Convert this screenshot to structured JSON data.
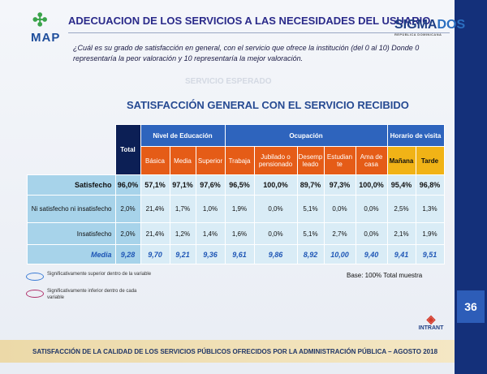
{
  "header": {
    "title": "ADECUACION DE LOS SERVICIOS A LAS NECESIDADES DEL USUARIO",
    "logo_left": "MAP",
    "logo_right_main": "SIGMA",
    "logo_right_accent": "DOS",
    "logo_right_sub": "REPÚBLICA DOMINICANA"
  },
  "question": "¿Cuál es su grado de satisfacción en general, con el servicio que ofrece la institución (del 0 al 10) Donde 0 representaría la peor valoración y 10 representaría la mejor valoración.",
  "ghost_text": "SERVICIO ESPERADO",
  "chart_title": "SATISFACCIÓN GENERAL CON EL SERVICIO RECIBIDO",
  "table": {
    "total_header": "Total",
    "groups": [
      {
        "label": "Nivel de Educación",
        "columns": [
          "Básica",
          "Media",
          "Superior"
        ]
      },
      {
        "label": "Ocupación",
        "columns": [
          "Trabaja",
          "Jubilado o pensionado",
          "Desemp leado",
          "Estudian te",
          "Ama de casa"
        ]
      },
      {
        "label": "Horario de visita",
        "columns": [
          "Mañana",
          "Tarde"
        ]
      }
    ],
    "rows": [
      {
        "label": "Satisfecho",
        "values": [
          "96,0%",
          "57,1%",
          "97,1%",
          "97,6%",
          "96,5%",
          "100,0%",
          "89,7%",
          "97,3%",
          "100,0%",
          "95,4%",
          "96,8%"
        ]
      },
      {
        "label": "Ni satisfecho ni insatisfecho",
        "values": [
          "2,0%",
          "21,4%",
          "1,7%",
          "1,0%",
          "1,9%",
          "0,0%",
          "5,1%",
          "0,0%",
          "0,0%",
          "2,5%",
          "1,3%"
        ]
      },
      {
        "label": "Insatisfecho",
        "values": [
          "2,0%",
          "21,4%",
          "1,2%",
          "1,4%",
          "1,6%",
          "0,0%",
          "5,1%",
          "2,7%",
          "0,0%",
          "2,1%",
          "1,9%"
        ]
      },
      {
        "label": "Media",
        "values": [
          "9,28",
          "9,70",
          "9,21",
          "9,36",
          "9,61",
          "9,86",
          "8,92",
          "10,00",
          "9,40",
          "9,41",
          "9,51"
        ]
      }
    ]
  },
  "legend": [
    {
      "text": "Significativamente superior dentro de la variable",
      "color": "#3a7bd5"
    },
    {
      "text": "Significativamente inferior dentro de cada variable",
      "color": "#b0306a"
    }
  ],
  "base_note": "Base: 100% Total muestra",
  "page_number": "36",
  "footer": "SATISFACCIÓN DE LA CALIDAD DE LOS SERVICIOS PÚBLICOS OFRECIDOS POR LA ADMINISTRACIÓN PÚBLICA – AGOSTO 2018",
  "footer_logo": "INTRANT",
  "colors": {
    "accent_blue": "#2e64bd",
    "dark_navy": "#0c1f55",
    "orange": "#e55c17",
    "yellow": "#f1b316",
    "cell_dark": "#a7d3ea",
    "cell_light": "#d9ecf6"
  }
}
